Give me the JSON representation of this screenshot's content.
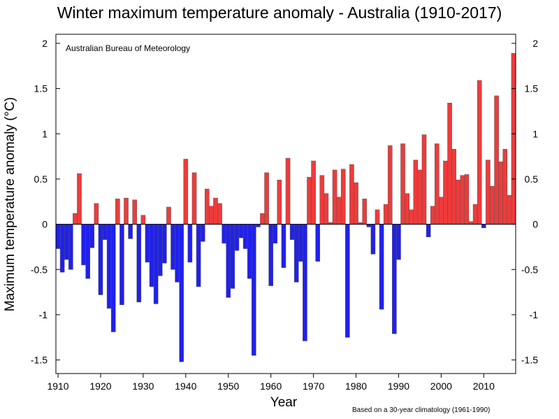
{
  "chart_data": {
    "type": "bar",
    "title": "Winter maximum temperature anomaly - Australia (1910-2017)",
    "ylabel": "Maximum temperature anomaly (°C)",
    "xlabel": "Year",
    "source": "Australian Bureau of Meteorology",
    "footnote": "Based on a 30-year climatology (1961-1990)",
    "xlim": [
      1909.5,
      2017.5
    ],
    "ylim": [
      -1.65,
      2.1
    ],
    "xticks": [
      1910,
      1920,
      1930,
      1940,
      1950,
      1960,
      1970,
      1980,
      1990,
      2000,
      2010
    ],
    "yticks": [
      -1.5,
      -1,
      -0.5,
      0,
      0.5,
      1,
      1.5,
      2
    ],
    "ytick_labels": [
      "-1.5",
      "-1",
      "-0.5",
      "0",
      "0.5",
      "1",
      "1.5",
      "2"
    ],
    "colors": {
      "positive": "#ee3b3b",
      "negative": "#2020ee",
      "stroke": "#555555"
    },
    "grid": false,
    "x": [
      1910,
      1911,
      1912,
      1913,
      1914,
      1915,
      1916,
      1917,
      1918,
      1919,
      1920,
      1921,
      1922,
      1923,
      1924,
      1925,
      1926,
      1927,
      1928,
      1929,
      1930,
      1931,
      1932,
      1933,
      1934,
      1935,
      1936,
      1937,
      1938,
      1939,
      1940,
      1941,
      1942,
      1943,
      1944,
      1945,
      1946,
      1947,
      1948,
      1949,
      1950,
      1951,
      1952,
      1953,
      1954,
      1955,
      1956,
      1957,
      1958,
      1959,
      1960,
      1961,
      1962,
      1963,
      1964,
      1965,
      1966,
      1967,
      1968,
      1969,
      1970,
      1971,
      1972,
      1973,
      1974,
      1975,
      1976,
      1977,
      1978,
      1979,
      1980,
      1981,
      1982,
      1983,
      1984,
      1985,
      1986,
      1987,
      1988,
      1989,
      1990,
      1991,
      1992,
      1993,
      1994,
      1995,
      1996,
      1997,
      1998,
      1999,
      2000,
      2001,
      2002,
      2003,
      2004,
      2005,
      2006,
      2007,
      2008,
      2009,
      2010,
      2011,
      2012,
      2013,
      2014,
      2015,
      2016,
      2017
    ],
    "values": [
      -0.27,
      -0.53,
      -0.39,
      -0.5,
      0.12,
      0.56,
      -0.45,
      -0.6,
      -0.26,
      0.23,
      -0.78,
      -0.17,
      -0.93,
      -1.19,
      0.28,
      -0.89,
      0.29,
      -0.16,
      0.27,
      -0.86,
      0.1,
      -0.42,
      -0.69,
      -0.88,
      -0.57,
      -0.43,
      0.19,
      -0.5,
      -0.64,
      -1.52,
      0.72,
      -0.42,
      0.57,
      -0.69,
      -0.19,
      0.39,
      0.2,
      0.29,
      0.23,
      -0.21,
      -0.81,
      -0.71,
      -0.29,
      -0.15,
      -0.27,
      -0.6,
      -1.45,
      -0.03,
      0.12,
      0.57,
      -0.68,
      -0.21,
      0.49,
      -0.48,
      0.73,
      -0.17,
      -0.64,
      -0.41,
      -1.29,
      0.52,
      0.7,
      -0.41,
      0.54,
      0.34,
      0.02,
      0.6,
      0.3,
      0.61,
      -1.25,
      0.66,
      0.46,
      0.02,
      0.28,
      -0.03,
      -0.33,
      0.16,
      -0.94,
      0.22,
      0.87,
      -1.21,
      -0.39,
      0.89,
      0.34,
      0.16,
      0.71,
      0.6,
      0.99,
      -0.14,
      0.2,
      0.89,
      0.3,
      0.7,
      1.34,
      0.83,
      0.49,
      0.54,
      0.55,
      0.03,
      0.22,
      1.59,
      -0.04,
      0.71,
      0.42,
      1.42,
      0.69,
      0.83,
      0.32,
      1.89
    ]
  }
}
